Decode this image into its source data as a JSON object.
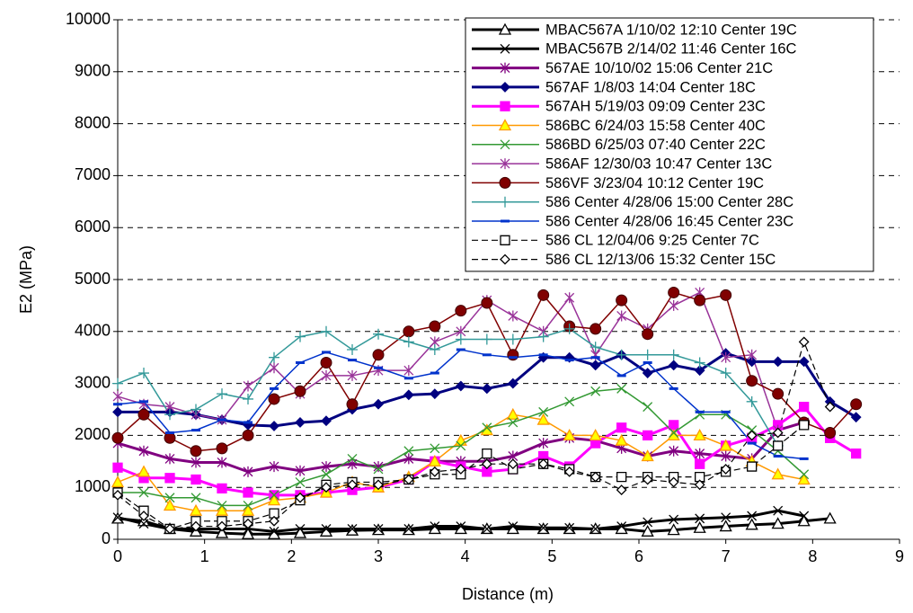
{
  "chart_data": {
    "type": "line",
    "x_label": "Distance (m)",
    "y_label": "E2 (MPa)",
    "x": [
      0,
      0.3,
      0.6,
      0.9,
      1.2,
      1.5,
      1.8,
      2.1,
      2.4,
      2.7,
      3.0,
      3.35,
      3.65,
      3.95,
      4.25,
      4.55,
      4.9,
      5.2,
      5.5,
      5.8,
      6.1,
      6.4,
      6.7,
      7.0,
      7.3,
      7.6,
      7.9,
      8.2,
      8.5
    ],
    "xlim": [
      0,
      9
    ],
    "xticks": [
      0,
      1,
      2,
      3,
      4,
      5,
      6,
      7,
      8,
      9
    ],
    "ylim": [
      0,
      10000
    ],
    "yticks": [
      0,
      1000,
      2000,
      3000,
      4000,
      5000,
      6000,
      7000,
      8000,
      9000,
      10000
    ],
    "grid": true,
    "legend_position": "upper right",
    "series": [
      {
        "name": "MBAC567A 1/10/02 12:10 Center 19C",
        "color": "#000000",
        "marker": "triangle",
        "marker_fill": "#ffffff",
        "line_width": 3,
        "values": [
          400,
          350,
          200,
          150,
          120,
          100,
          100,
          120,
          150,
          170,
          180,
          180,
          200,
          200,
          200,
          200,
          200,
          200,
          200,
          200,
          150,
          180,
          220,
          250,
          280,
          300,
          350,
          400,
          null
        ]
      },
      {
        "name": "MBAC567B 2/14/02 11:46 Center 16C",
        "color": "#000000",
        "marker": "x",
        "line_width": 3,
        "values": [
          420,
          300,
          200,
          200,
          200,
          200,
          150,
          200,
          200,
          200,
          200,
          200,
          250,
          250,
          200,
          250,
          220,
          220,
          200,
          250,
          330,
          380,
          400,
          420,
          450,
          550,
          450,
          null,
          null
        ]
      },
      {
        "name": "567AE 10/10/02 15:06 Center 21C",
        "color": "#800080",
        "marker": "asterisk",
        "line_width": 3,
        "values": [
          1850,
          1700,
          1550,
          1480,
          1480,
          1300,
          1400,
          1320,
          1400,
          1450,
          1400,
          1550,
          1500,
          1500,
          1500,
          1600,
          1850,
          1950,
          1900,
          1750,
          1600,
          1700,
          1650,
          1600,
          1550,
          2100,
          2250,
          null,
          null
        ]
      },
      {
        "name": "567AF 1/8/03 14:04 Center 18C",
        "color": "#000080",
        "marker": "diamond",
        "line_width": 3,
        "values": [
          2450,
          2450,
          2450,
          2400,
          2300,
          2200,
          2180,
          2250,
          2280,
          2500,
          2600,
          2780,
          2800,
          2950,
          2900,
          3000,
          3500,
          3500,
          3350,
          3550,
          3200,
          3350,
          3250,
          3580,
          3420,
          3420,
          3420,
          2650,
          2350
        ]
      },
      {
        "name": "567AH 5/19/03 09:09 Center 23C",
        "color": "#ff00ff",
        "marker": "square",
        "line_width": 3,
        "values": [
          1380,
          1180,
          1180,
          1150,
          980,
          900,
          850,
          850,
          900,
          950,
          1000,
          1150,
          1500,
          1400,
          1300,
          1350,
          1600,
          1400,
          1850,
          2150,
          2000,
          2200,
          1450,
          1800,
          1950,
          2200,
          2550,
          1950,
          1650
        ]
      },
      {
        "name": "586BC 6/24/03 15:58 Center 40C",
        "color": "#ff9900",
        "marker": "triangle",
        "marker_fill": "#ffff00",
        "line_width": 1.5,
        "values": [
          1100,
          1300,
          650,
          550,
          550,
          550,
          750,
          800,
          900,
          1100,
          1000,
          1200,
          1500,
          1900,
          2100,
          2400,
          2300,
          2000,
          2000,
          1900,
          1600,
          2000,
          2000,
          1800,
          1500,
          1250,
          1150,
          null,
          null
        ]
      },
      {
        "name": "586BD 6/25/03 07:40 Center 22C",
        "color": "#339933",
        "marker": "x",
        "line_width": 1.5,
        "values": [
          900,
          900,
          800,
          800,
          650,
          650,
          850,
          1100,
          1250,
          1550,
          1350,
          1700,
          1750,
          1800,
          2150,
          2250,
          2450,
          2650,
          2850,
          2900,
          2550,
          2050,
          2400,
          2400,
          2100,
          1700,
          1250,
          null,
          null
        ]
      },
      {
        "name": "586AF 12/30/03 10:47 Center 13C",
        "color": "#993399",
        "marker": "asterisk",
        "line_width": 1.5,
        "values": [
          2750,
          2600,
          2550,
          2400,
          2300,
          2950,
          3300,
          2800,
          3150,
          3150,
          3250,
          3250,
          3800,
          4000,
          4600,
          4300,
          4000,
          4650,
          3550,
          4300,
          4050,
          4500,
          4750,
          3500,
          3550,
          2100,
          null,
          null,
          null
        ]
      },
      {
        "name": "586VF 3/23/04 10:12 Center 19C",
        "color": "#800000",
        "marker": "circle",
        "line_width": 1.5,
        "values": [
          1950,
          2400,
          1950,
          1700,
          1750,
          2000,
          2700,
          2850,
          3400,
          2600,
          3550,
          4000,
          4100,
          4400,
          4550,
          3550,
          4700,
          4100,
          4050,
          4600,
          3950,
          4750,
          4600,
          4700,
          3050,
          2800,
          2250,
          2050,
          2600
        ]
      },
      {
        "name": "586 Center 4/28/06 15:00 Center 28C",
        "color": "#339999",
        "marker": "plus",
        "line_width": 1.5,
        "values": [
          3000,
          3200,
          2400,
          2500,
          2800,
          2700,
          3500,
          3900,
          4000,
          3650,
          3950,
          3800,
          3650,
          3850,
          3850,
          3850,
          3900,
          4050,
          3700,
          3550,
          3550,
          3550,
          3400,
          3200,
          2650,
          1800,
          null,
          null,
          null
        ]
      },
      {
        "name": "586 Center 4/28/06 16:45 Center 23C",
        "color": "#0033cc",
        "marker": "dash",
        "line_width": 1.5,
        "values": [
          2600,
          2650,
          2050,
          2100,
          2300,
          2250,
          2900,
          3400,
          3600,
          3450,
          3300,
          3100,
          3200,
          3650,
          3550,
          3500,
          3550,
          3450,
          3500,
          3150,
          3400,
          2900,
          2450,
          2450,
          1850,
          1600,
          1550,
          null,
          null
        ]
      },
      {
        "name": "586 CL 12/04/06 9:25 Center 7C",
        "color": "#000000",
        "marker": "square",
        "marker_fill": "#ffffff",
        "dashed": true,
        "line_width": 1.2,
        "values": [
          900,
          550,
          200,
          350,
          350,
          350,
          500,
          750,
          1050,
          1100,
          1100,
          1150,
          1250,
          1250,
          1650,
          1350,
          1450,
          1350,
          1200,
          1200,
          1200,
          1200,
          1200,
          1300,
          1400,
          1800,
          2200,
          null,
          null
        ]
      },
      {
        "name": "586 CL 12/13/06 15:32 Center 15C",
        "color": "#000000",
        "marker": "diamond",
        "marker_fill": "#ffffff",
        "dashed": true,
        "line_width": 1.2,
        "values": [
          850,
          450,
          200,
          250,
          250,
          300,
          350,
          800,
          1000,
          1050,
          1050,
          1150,
          1300,
          1350,
          1450,
          1450,
          1450,
          1300,
          1200,
          950,
          1150,
          1100,
          1050,
          1350,
          2000,
          2050,
          3800,
          2550,
          null
        ]
      }
    ]
  }
}
